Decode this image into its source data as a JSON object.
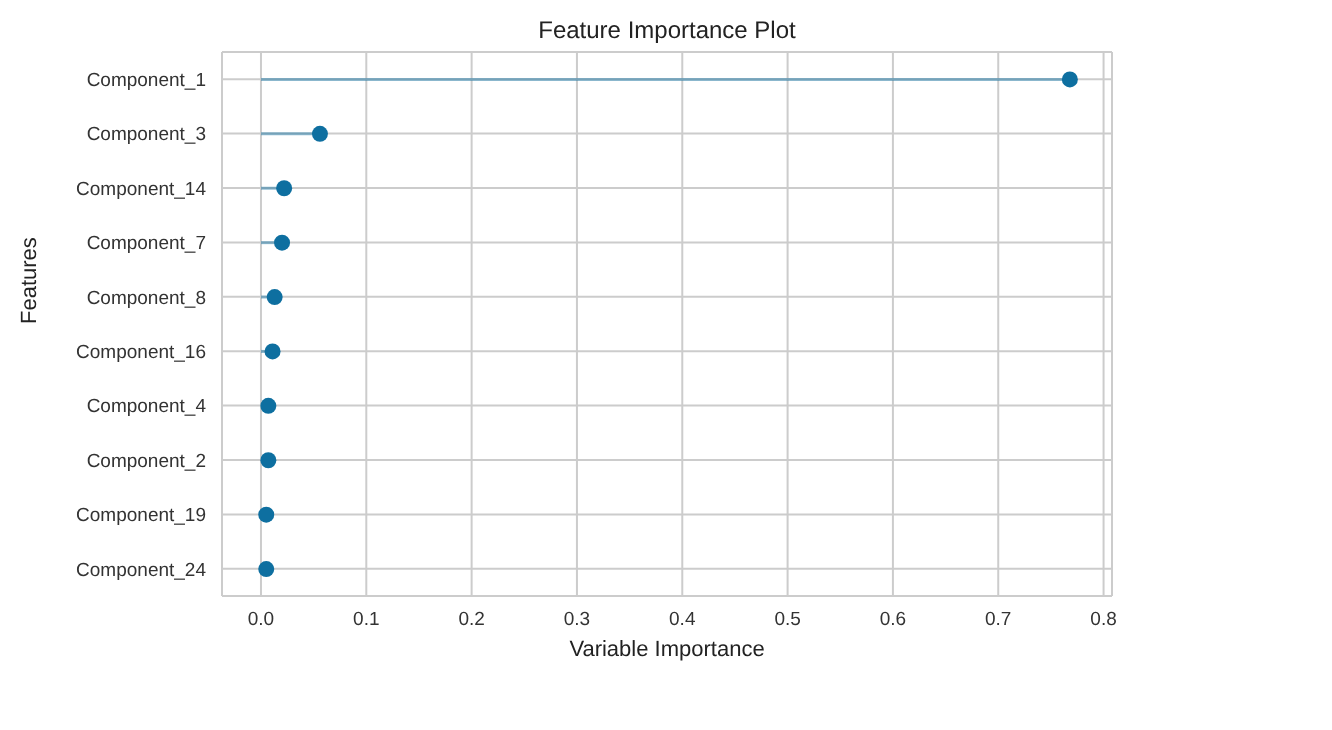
{
  "chart_data": {
    "type": "lollipop",
    "orientation": "horizontal",
    "title": "Feature Importance Plot",
    "xlabel": "Variable Importance",
    "ylabel": "Features",
    "categories": [
      "Component_1",
      "Component_3",
      "Component_14",
      "Component_7",
      "Component_8",
      "Component_16",
      "Component_4",
      "Component_2",
      "Component_19",
      "Component_24"
    ],
    "values": [
      0.768,
      0.056,
      0.022,
      0.02,
      0.013,
      0.011,
      0.007,
      0.007,
      0.005,
      0.005
    ],
    "color": "#0e6fa0",
    "xlim": [
      -0.037,
      0.808
    ],
    "xticks": [
      {
        "value": 0,
        "label": "0.0"
      },
      0.1,
      0.2,
      0.3,
      0.4,
      0.5,
      0.6,
      0.7,
      0.8
    ],
    "grid": true,
    "marker": "circle"
  }
}
